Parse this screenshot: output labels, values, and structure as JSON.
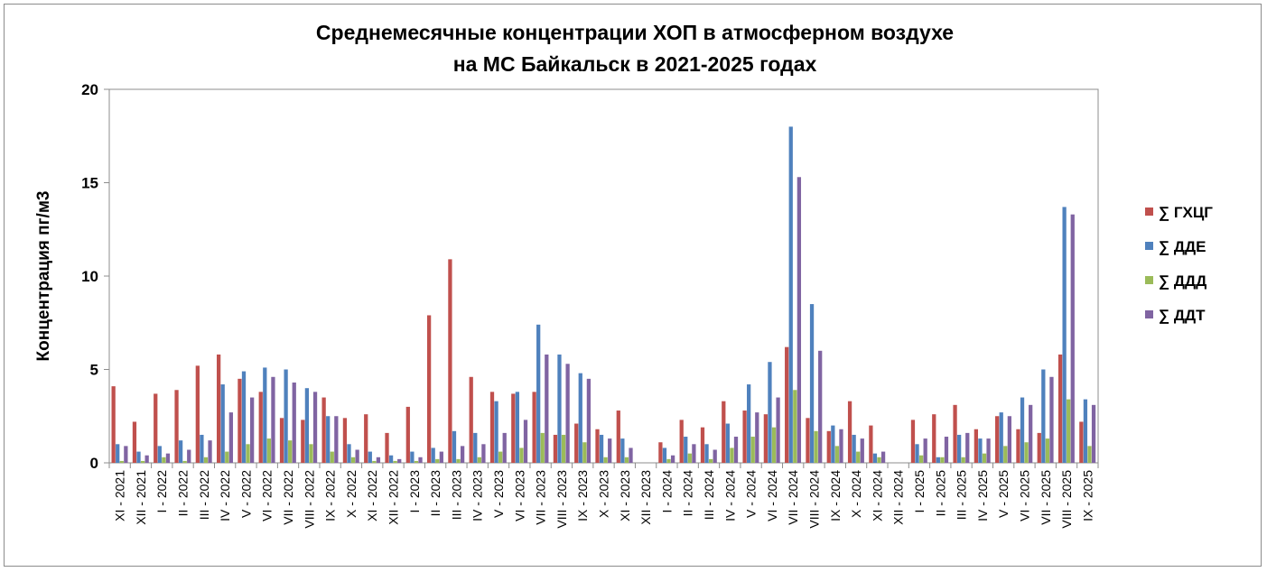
{
  "chart": {
    "title_line1": "Среднемесячные концентрации ХОП в атмосферном воздухе",
    "title_line2": "на МС Байкальск   в 2021-2025 годах"
  },
  "chart_data": {
    "type": "bar",
    "title": "Среднемесячные концентрации ХОП в атмосферном воздухе на МС Байкальск   в 2021-2025 годах",
    "ylabel": "Концентрация пг/м3",
    "xlabel": "",
    "ylim": [
      0,
      20
    ],
    "yticks": [
      0,
      5,
      10,
      15,
      20
    ],
    "grid": false,
    "legend_position": "right",
    "categories": [
      "XI - 2021",
      "XII - 2021",
      "I - 2022",
      "II - 2022",
      "III - 2022",
      "IV - 2022",
      "V - 2022",
      "VI - 2022",
      "VII - 2022",
      "VIII - 2022",
      "IX - 2022",
      "X - 2022",
      "XI - 2022",
      "XII - 2022",
      "I - 2023",
      "II - 2023",
      "III - 2023",
      "IV - 2023",
      "V - 2023",
      "VI - 2023",
      "VII - 2023",
      "VIII - 2023",
      "IX - 2023",
      "X - 2023",
      "XI - 2023",
      "XII - 2023",
      "I - 2024",
      "II - 2024",
      "III - 2024",
      "IV - 2024",
      "V - 2024",
      "VI - 2024",
      "VII - 2024",
      "VIII - 2024",
      "IX - 2024",
      "X - 2024",
      "XI - 2024",
      "XII - 2024",
      "I - 2025",
      "II - 2025",
      "III - 2025",
      "IV - 2025",
      "V - 2025",
      "VI - 2025",
      "VII - 2025",
      "VIII - 2025",
      "IX - 2025"
    ],
    "series": [
      {
        "name": "∑ ГХЦГ",
        "color": "#c0504d",
        "values": [
          4.1,
          2.2,
          3.7,
          3.9,
          5.2,
          5.8,
          4.5,
          3.8,
          2.4,
          2.3,
          3.5,
          2.4,
          2.6,
          1.6,
          3.0,
          7.9,
          10.9,
          4.6,
          3.8,
          3.7,
          3.8,
          1.5,
          2.1,
          1.8,
          2.8,
          0,
          1.1,
          2.3,
          1.9,
          3.3,
          2.8,
          2.6,
          6.2,
          2.4,
          1.7,
          3.3,
          2.0,
          0,
          2.3,
          2.6,
          3.1,
          1.8,
          2.5,
          1.8,
          1.6,
          5.8,
          2.2
        ]
      },
      {
        "name": "∑ ДДЕ",
        "color": "#4f81bd",
        "values": [
          1.0,
          0.6,
          0.9,
          1.2,
          1.5,
          4.2,
          4.9,
          5.1,
          5.0,
          4.0,
          2.5,
          1.0,
          0.6,
          0.4,
          0.6,
          0.8,
          1.7,
          1.6,
          3.3,
          3.8,
          7.4,
          5.8,
          4.8,
          1.5,
          1.3,
          0,
          0.8,
          1.4,
          1.0,
          2.1,
          4.2,
          5.4,
          18.0,
          8.5,
          2.0,
          1.5,
          0.5,
          0,
          1.0,
          0.3,
          1.5,
          1.3,
          2.7,
          3.5,
          5.0,
          13.7,
          3.4
        ]
      },
      {
        "name": "∑ ДДД",
        "color": "#9bbb59",
        "values": [
          0.1,
          0.1,
          0.3,
          0.1,
          0.3,
          0.6,
          1.0,
          1.3,
          1.2,
          1.0,
          0.6,
          0.3,
          0.1,
          0.1,
          0.1,
          0.2,
          0.2,
          0.3,
          0.6,
          0.8,
          1.6,
          1.5,
          1.1,
          0.3,
          0.3,
          0,
          0.2,
          0.5,
          0.2,
          0.8,
          1.4,
          1.9,
          3.9,
          1.7,
          0.9,
          0.6,
          0.3,
          0,
          0.4,
          0.3,
          0.3,
          0.5,
          0.9,
          1.1,
          1.3,
          3.4,
          0.9
        ]
      },
      {
        "name": "∑ ДДТ",
        "color": "#8064a2",
        "values": [
          0.9,
          0.4,
          0.5,
          0.7,
          1.2,
          2.7,
          3.5,
          4.6,
          4.3,
          3.8,
          2.5,
          0.7,
          0.3,
          0.2,
          0.3,
          0.6,
          0.9,
          1.0,
          1.6,
          2.3,
          5.8,
          5.3,
          4.5,
          1.3,
          0.8,
          0,
          0.4,
          1.0,
          0.7,
          1.4,
          2.7,
          3.5,
          15.3,
          6.0,
          1.8,
          1.3,
          0.6,
          0,
          1.3,
          1.4,
          1.6,
          1.3,
          2.5,
          3.1,
          4.6,
          13.3,
          3.1
        ]
      }
    ]
  }
}
